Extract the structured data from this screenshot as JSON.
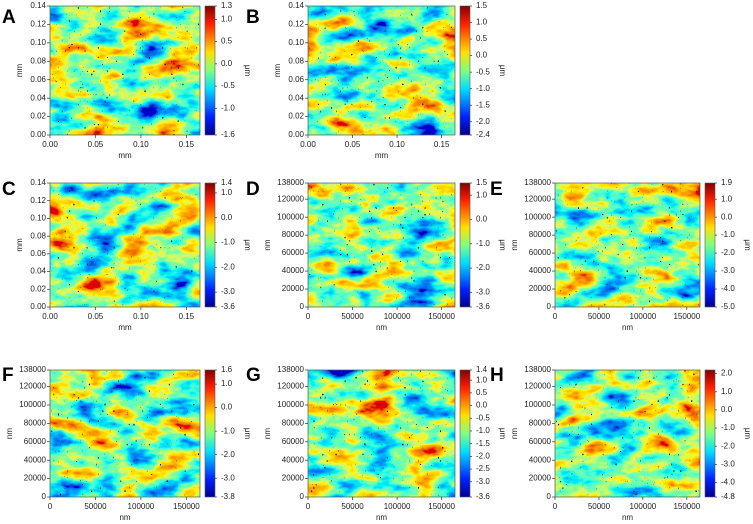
{
  "chart_data": [
    {
      "type": "heatmap",
      "label": "A",
      "colormap": "jet",
      "xlabel": "mm",
      "ylabel": "mm",
      "colorbar_label": "μm",
      "xlim": [
        0,
        0.165
      ],
      "xticks": [
        {
          "value": 0,
          "label": "0.00"
        },
        {
          "value": 0.05,
          "label": "0.05"
        },
        {
          "value": 0.1,
          "label": "0.10"
        },
        {
          "value": 0.15,
          "label": "0.15"
        }
      ],
      "ylim": [
        0,
        0.14
      ],
      "yticks": [
        {
          "value": 0,
          "label": "0.00"
        },
        {
          "value": 0.02,
          "label": "0.02"
        },
        {
          "value": 0.04,
          "label": "0.04"
        },
        {
          "value": 0.06,
          "label": "0.06"
        },
        {
          "value": 0.08,
          "label": "0.08"
        },
        {
          "value": 0.1,
          "label": "0.10"
        },
        {
          "value": 0.12,
          "label": "0.12"
        },
        {
          "value": 0.14,
          "label": "0.14"
        }
      ],
      "clim": [
        -1.6,
        1.3
      ],
      "cticks": [
        -1.6,
        {
          "value": -1,
          "label": "-1.0"
        },
        -0.5,
        {
          "value": 0,
          "label": "0.0"
        },
        0.5,
        {
          "value": 1,
          "label": "1.0"
        },
        1.3
      ]
    },
    {
      "type": "heatmap",
      "label": "B",
      "colormap": "jet",
      "xlabel": "mm",
      "ylabel": "mm",
      "colorbar_label": "μm",
      "xlim": [
        0,
        0.165
      ],
      "xticks": [
        {
          "value": 0,
          "label": "0.00"
        },
        {
          "value": 0.05,
          "label": "0.05"
        },
        {
          "value": 0.1,
          "label": "0.10"
        },
        {
          "value": 0.15,
          "label": "0.15"
        }
      ],
      "ylim": [
        0,
        0.14
      ],
      "yticks": [
        {
          "value": 0,
          "label": "0.00"
        },
        {
          "value": 0.02,
          "label": "0.02"
        },
        {
          "value": 0.04,
          "label": "0.04"
        },
        {
          "value": 0.06,
          "label": "0.06"
        },
        {
          "value": 0.08,
          "label": "0.08"
        },
        {
          "value": 0.1,
          "label": "0.10"
        },
        {
          "value": 0.12,
          "label": "0.12"
        },
        {
          "value": 0.14,
          "label": "0.14"
        }
      ],
      "clim": [
        -2.4,
        1.5
      ],
      "cticks": [
        -2.4,
        {
          "value": -2,
          "label": "-2.0"
        },
        -1.5,
        {
          "value": -1,
          "label": "-1.0"
        },
        -0.5,
        {
          "value": 0,
          "label": "0.0"
        },
        0.5,
        {
          "value": 1,
          "label": "1.0"
        },
        1.5
      ]
    },
    {
      "type": "heatmap",
      "label": "C",
      "colormap": "jet",
      "xlabel": "mm",
      "ylabel": "mm",
      "colorbar_label": "μm",
      "xlim": [
        0,
        0.165
      ],
      "xticks": [
        {
          "value": 0,
          "label": "0.00"
        },
        {
          "value": 0.05,
          "label": "0.05"
        },
        {
          "value": 0.1,
          "label": "0.10"
        },
        {
          "value": 0.15,
          "label": "0.15"
        }
      ],
      "ylim": [
        0,
        0.14
      ],
      "yticks": [
        {
          "value": 0,
          "label": "0.00"
        },
        {
          "value": 0.02,
          "label": "0.02"
        },
        {
          "value": 0.04,
          "label": "0.04"
        },
        {
          "value": 0.06,
          "label": "0.06"
        },
        {
          "value": 0.08,
          "label": "0.08"
        },
        {
          "value": 0.1,
          "label": "0.10"
        },
        {
          "value": 0.12,
          "label": "0.12"
        },
        {
          "value": 0.14,
          "label": "0.14"
        }
      ],
      "clim": [
        -3.6,
        1.4
      ],
      "cticks": [
        -3.6,
        {
          "value": -3,
          "label": "-3.0"
        },
        {
          "value": -2,
          "label": "-2.0"
        },
        {
          "value": -1,
          "label": "-1.0"
        },
        {
          "value": 0,
          "label": "0.0"
        },
        {
          "value": 1,
          "label": "1.0"
        },
        1.4
      ]
    },
    {
      "type": "heatmap",
      "label": "D",
      "colormap": "jet",
      "xlabel": "nm",
      "ylabel": "nm",
      "colorbar_label": "μm",
      "xlim": [
        0,
        165000
      ],
      "xticks": [
        0,
        50000,
        100000,
        150000
      ],
      "ylim": [
        0,
        138000
      ],
      "yticks": [
        0,
        20000,
        40000,
        60000,
        80000,
        100000,
        120000,
        138000
      ],
      "clim": [
        -3.6,
        1.5
      ],
      "cticks": [
        -3.6,
        {
          "value": -3,
          "label": "-3.0"
        },
        {
          "value": -2,
          "label": "-2.0"
        },
        {
          "value": -1,
          "label": "-1.0"
        },
        {
          "value": 0,
          "label": "0.0"
        },
        {
          "value": 1,
          "label": "1.0"
        },
        1.5
      ]
    },
    {
      "type": "heatmap",
      "label": "E",
      "colormap": "jet",
      "xlabel": "nm",
      "ylabel": "nm",
      "colorbar_label": "μm",
      "xlim": [
        0,
        165000
      ],
      "xticks": [
        0,
        50000,
        100000,
        150000
      ],
      "ylim": [
        0,
        138000
      ],
      "yticks": [
        0,
        20000,
        40000,
        60000,
        80000,
        100000,
        120000,
        138000
      ],
      "clim": [
        -5,
        1.9
      ],
      "cticks": [
        {
          "value": -5,
          "label": "-5.0"
        },
        {
          "value": -4,
          "label": "-4.0"
        },
        {
          "value": -3,
          "label": "-3.0"
        },
        {
          "value": -2,
          "label": "-2.0"
        },
        {
          "value": -1,
          "label": "-1.0"
        },
        {
          "value": 0,
          "label": "0.0"
        },
        {
          "value": 1,
          "label": "1.0"
        },
        1.9
      ]
    },
    {
      "type": "heatmap",
      "label": "F",
      "colormap": "jet",
      "xlabel": "nm",
      "ylabel": "nm",
      "colorbar_label": "μm",
      "xlim": [
        0,
        165000
      ],
      "xticks": [
        0,
        50000,
        100000,
        150000
      ],
      "ylim": [
        0,
        138000
      ],
      "yticks": [
        0,
        20000,
        40000,
        60000,
        80000,
        100000,
        120000,
        138000
      ],
      "clim": [
        -3.8,
        1.6
      ],
      "cticks": [
        -3.8,
        {
          "value": -3,
          "label": "-3.0"
        },
        {
          "value": -2,
          "label": "-2.0"
        },
        {
          "value": -1,
          "label": "-1.0"
        },
        {
          "value": 0,
          "label": "0.0"
        },
        {
          "value": 1,
          "label": "1.0"
        },
        1.6
      ]
    },
    {
      "type": "heatmap",
      "label": "G",
      "colormap": "jet",
      "xlabel": "nm",
      "ylabel": "nm",
      "colorbar_label": "μm",
      "xlim": [
        0,
        165000
      ],
      "xticks": [
        0,
        50000,
        100000,
        150000
      ],
      "ylim": [
        0,
        138000
      ],
      "yticks": [
        0,
        20000,
        40000,
        60000,
        80000,
        100000,
        120000,
        138000
      ],
      "clim": [
        -3.6,
        1.4
      ],
      "cticks": [
        -3.6,
        {
          "value": -3,
          "label": "-3.0"
        },
        -2.5,
        {
          "value": -2,
          "label": "-2.0"
        },
        -1.5,
        {
          "value": -1,
          "label": "-1.0"
        },
        -0.5,
        {
          "value": 0,
          "label": "0.0"
        },
        0.5,
        {
          "value": 1,
          "label": "1.0"
        },
        1.4
      ]
    },
    {
      "type": "heatmap",
      "label": "H",
      "colormap": "jet",
      "xlabel": "nm",
      "ylabel": "nm",
      "colorbar_label": "μm",
      "xlim": [
        0,
        165000
      ],
      "xticks": [
        0,
        50000,
        100000,
        150000
      ],
      "ylim": [
        0,
        138000
      ],
      "yticks": [
        0,
        20000,
        40000,
        60000,
        80000,
        100000,
        120000,
        138000
      ],
      "clim": [
        -4.8,
        2.2
      ],
      "cticks": [
        -4.8,
        {
          "value": -4,
          "label": "-4.0"
        },
        {
          "value": -3,
          "label": "-3.0"
        },
        {
          "value": -2,
          "label": "-2.0"
        },
        {
          "value": -1,
          "label": "-1.0"
        },
        {
          "value": 0,
          "label": "0.0"
        },
        {
          "value": 1,
          "label": "1.0"
        },
        {
          "value": 2,
          "label": "2.0"
        }
      ]
    }
  ]
}
